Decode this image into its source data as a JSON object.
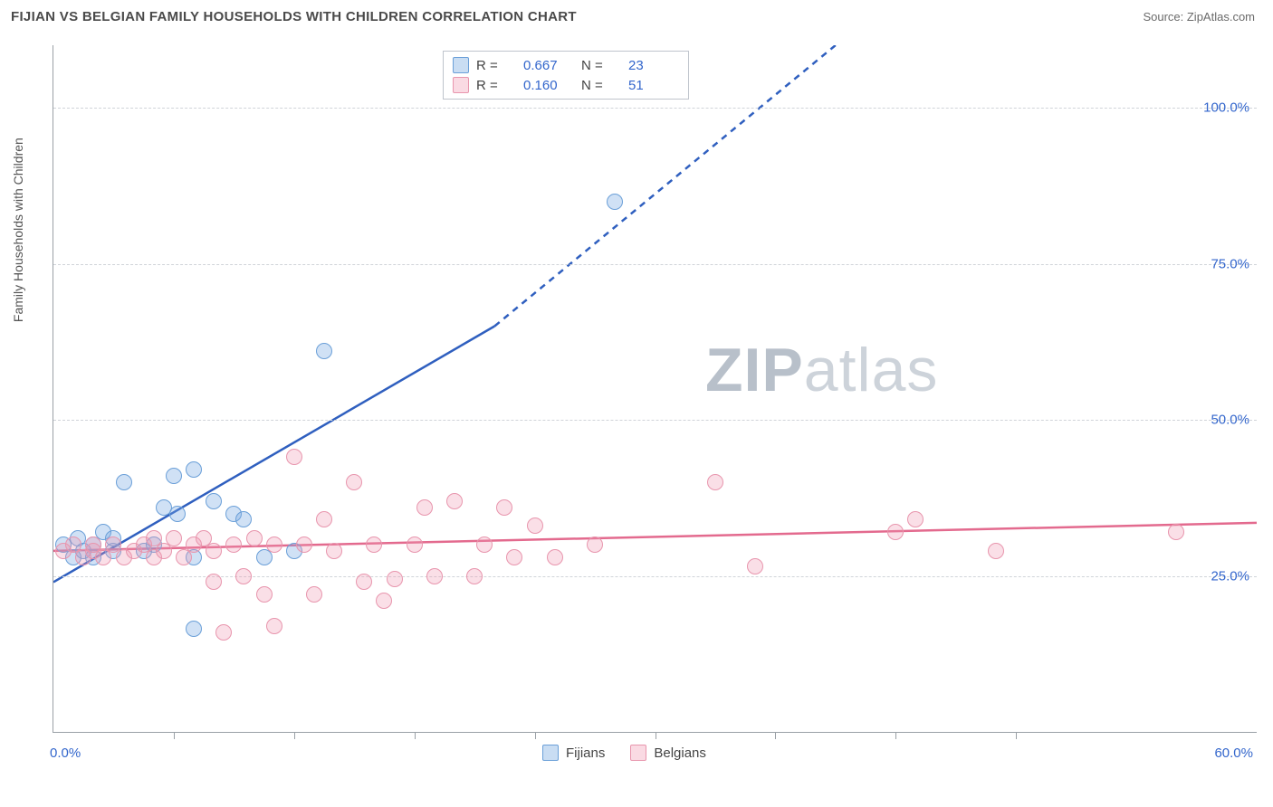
{
  "header": {
    "title": "FIJIAN VS BELGIAN FAMILY HOUSEHOLDS WITH CHILDREN CORRELATION CHART",
    "source": "Source: ZipAtlas.com"
  },
  "y_axis_label": "Family Households with Children",
  "watermark": {
    "bold": "ZIP",
    "rest": "atlas"
  },
  "chart": {
    "type": "scatter",
    "xlim": [
      0,
      60
    ],
    "ylim": [
      0,
      110
    ],
    "x_min_label": "0.0%",
    "x_max_label": "60.0%",
    "y_ticks": [
      25,
      50,
      75,
      100
    ],
    "y_tick_labels": [
      "25.0%",
      "50.0%",
      "75.0%",
      "100.0%"
    ],
    "x_tick_positions": [
      6,
      12,
      18,
      24,
      30,
      36,
      42,
      48
    ],
    "grid_color": "#d0d4d9",
    "axis_color": "#9aa0a6",
    "background_color": "#ffffff",
    "label_color": "#3366cc",
    "series": [
      {
        "name": "Fijians",
        "color_fill": "rgba(120,170,225,0.35)",
        "color_stroke": "#6a9fd8",
        "trend_color": "#2f5fbf",
        "R": "0.667",
        "N": "23",
        "trend": {
          "x1": 0,
          "y1": 24,
          "x2": 22,
          "y2": 65,
          "dash_to_x": 39,
          "dash_to_y": 110
        },
        "points": [
          [
            0.5,
            30
          ],
          [
            1,
            28
          ],
          [
            1.2,
            31
          ],
          [
            1.5,
            29
          ],
          [
            2,
            30
          ],
          [
            2,
            28
          ],
          [
            2.5,
            32
          ],
          [
            3,
            29
          ],
          [
            3,
            31
          ],
          [
            3.5,
            40
          ],
          [
            4.5,
            29
          ],
          [
            5,
            30
          ],
          [
            5.5,
            36
          ],
          [
            6,
            41
          ],
          [
            6.2,
            35
          ],
          [
            7,
            42
          ],
          [
            7,
            28
          ],
          [
            8,
            37
          ],
          [
            9,
            35
          ],
          [
            9.5,
            34
          ],
          [
            10.5,
            28
          ],
          [
            7,
            16.5
          ],
          [
            13.5,
            61
          ],
          [
            28,
            85
          ],
          [
            12,
            29
          ]
        ]
      },
      {
        "name": "Belgians",
        "color_fill": "rgba(240,150,175,0.30)",
        "color_stroke": "#e895ad",
        "trend_color": "#e36a8e",
        "R": "0.160",
        "N": "51",
        "trend": {
          "x1": 0,
          "y1": 29,
          "x2": 60,
          "y2": 33.5
        },
        "points": [
          [
            0.5,
            29
          ],
          [
            1,
            30
          ],
          [
            1.5,
            28
          ],
          [
            2,
            30
          ],
          [
            2,
            29
          ],
          [
            2.5,
            28
          ],
          [
            3,
            30
          ],
          [
            3.5,
            28
          ],
          [
            4,
            29
          ],
          [
            4.5,
            30
          ],
          [
            5,
            31
          ],
          [
            5,
            28
          ],
          [
            5.5,
            29
          ],
          [
            6,
            31
          ],
          [
            6.5,
            28
          ],
          [
            7,
            30
          ],
          [
            7.5,
            31
          ],
          [
            8,
            29
          ],
          [
            8,
            24
          ],
          [
            8.5,
            16
          ],
          [
            9,
            30
          ],
          [
            9.5,
            25
          ],
          [
            10,
            31
          ],
          [
            10.5,
            22
          ],
          [
            11,
            30
          ],
          [
            11,
            17
          ],
          [
            12,
            44
          ],
          [
            12.5,
            30
          ],
          [
            13,
            22
          ],
          [
            13.5,
            34
          ],
          [
            14,
            29
          ],
          [
            15,
            40
          ],
          [
            15.5,
            24
          ],
          [
            16,
            30
          ],
          [
            16.5,
            21
          ],
          [
            17,
            24.5
          ],
          [
            18,
            30
          ],
          [
            18.5,
            36
          ],
          [
            19,
            25
          ],
          [
            20,
            37
          ],
          [
            21,
            25
          ],
          [
            21.5,
            30
          ],
          [
            22.5,
            36
          ],
          [
            23,
            28
          ],
          [
            24,
            33
          ],
          [
            25,
            28
          ],
          [
            27,
            30
          ],
          [
            33,
            40
          ],
          [
            35,
            26.5
          ],
          [
            42,
            32
          ],
          [
            43,
            34
          ],
          [
            47,
            29
          ],
          [
            56,
            32
          ]
        ]
      }
    ]
  },
  "legend_top": {
    "rows": [
      {
        "series": 0,
        "R_label": "R =",
        "N_label": "N ="
      },
      {
        "series": 1,
        "R_label": "R =",
        "N_label": "N ="
      }
    ]
  }
}
